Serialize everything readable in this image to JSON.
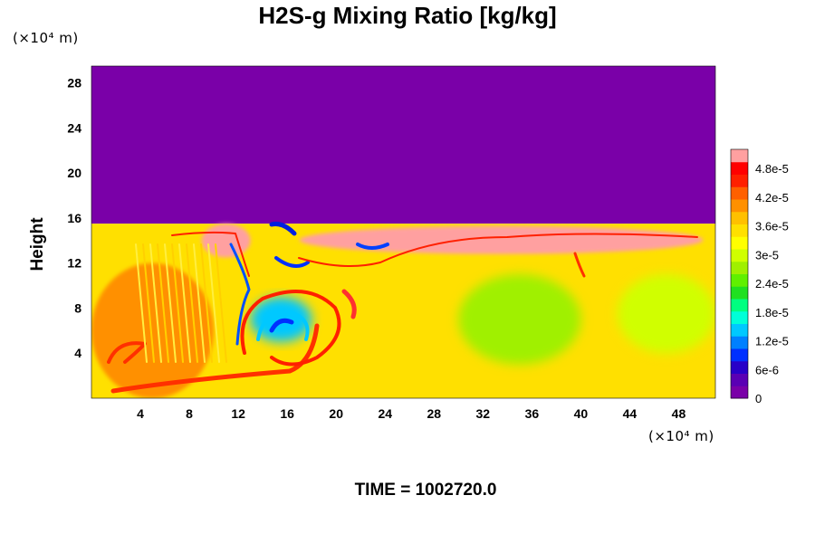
{
  "chart_data": {
    "type": "heatmap",
    "title": "H2S-g Mixing Ratio [kg/kg]",
    "ylabel": "Height",
    "x_unit": "(×10⁴ m)",
    "y_unit": "(×10⁴ m)",
    "footer": "TIME = 1002720.0",
    "xlim": [
      0,
      51
    ],
    "ylim": [
      0,
      29.5
    ],
    "x_ticks": [
      4,
      8,
      12,
      16,
      20,
      24,
      28,
      32,
      36,
      40,
      44,
      48
    ],
    "y_ticks": [
      4,
      8,
      12,
      16,
      20,
      24,
      28
    ],
    "colorbar": {
      "vmin": 0,
      "vmax": 5.2e-05,
      "tick_values": [
        0,
        6e-06,
        1.2e-05,
        1.8e-05,
        2.4e-05,
        3e-05,
        3.6e-05,
        4.2e-05,
        4.8e-05
      ],
      "tick_labels": [
        "0",
        "6e-6",
        "1.2e-5",
        "1.8e-5",
        "2.4e-5",
        "3e-5",
        "3.6e-5",
        "4.2e-5",
        "4.8e-5"
      ],
      "colors": [
        "#7a00a8",
        "#5a00b4",
        "#2800c8",
        "#0030ff",
        "#0080ff",
        "#00c8ff",
        "#00ffd8",
        "#00ff80",
        "#20e020",
        "#60f000",
        "#a0f000",
        "#d0ff00",
        "#ffff00",
        "#ffe000",
        "#ffc000",
        "#ff9000",
        "#ff6000",
        "#ff2000",
        "#ff0000",
        "#ffa0a0"
      ]
    },
    "regions": [
      {
        "name": "upper layer",
        "x": [
          0,
          51
        ],
        "y": [
          15.5,
          29.5
        ],
        "value": 0
      },
      {
        "name": "lower layer",
        "x": [
          0,
          51
        ],
        "y": [
          0,
          15.5
        ],
        "value": 3.4e-05
      },
      {
        "name": "left warm zone",
        "x": [
          0,
          10
        ],
        "y": [
          0,
          12
        ],
        "value": 3.9e-05
      },
      {
        "name": "pink cap left",
        "x": [
          9,
          13
        ],
        "y": [
          12.5,
          15.5
        ],
        "value": 5.1e-05
      },
      {
        "name": "pink cap right",
        "x": [
          17,
          50
        ],
        "y": [
          12.8,
          15.3
        ],
        "value": 5.1e-05
      },
      {
        "name": "vortex core",
        "x": [
          13,
          18
        ],
        "y": [
          5,
          9
        ],
        "value": 1.5e-05
      },
      {
        "name": "green eddy middle",
        "x": [
          30,
          40
        ],
        "y": [
          3,
          11
        ],
        "value": 2.8e-05
      },
      {
        "name": "green eddy right",
        "x": [
          43,
          51
        ],
        "y": [
          4,
          11
        ],
        "value": 2.9e-05
      }
    ]
  }
}
